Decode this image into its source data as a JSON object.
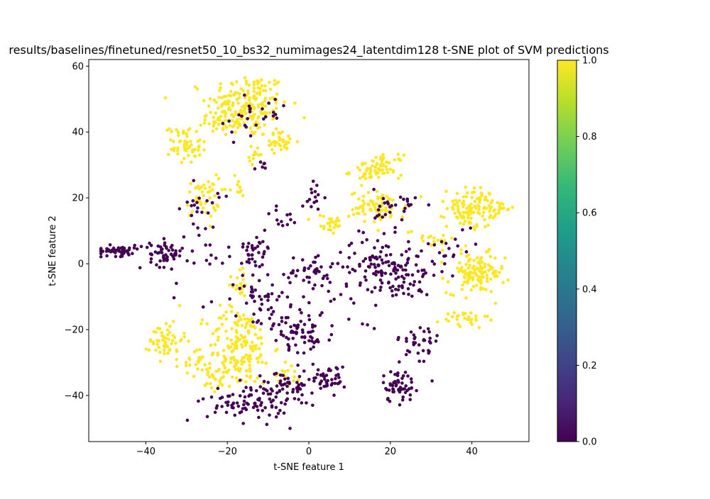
{
  "chart_data": {
    "type": "scatter",
    "title": "results/baselines/finetuned/resnet50_10_bs32_numimages24_latentdim128 t-SNE plot of SVM predictions",
    "xlabel": "t-SNE feature 1",
    "ylabel": "t-SNE feature 2",
    "xlim": [
      -54,
      54
    ],
    "ylim": [
      -54,
      62
    ],
    "x_ticks": [
      -40,
      -20,
      0,
      20,
      40
    ],
    "x_tick_labels": [
      "−40",
      "−20",
      "0",
      "20",
      "40"
    ],
    "y_ticks": [
      -40,
      -20,
      0,
      20,
      40,
      60
    ],
    "y_tick_labels": [
      "−40",
      "−20",
      "0",
      "20",
      "40",
      "60"
    ],
    "grid": false,
    "colormap": "viridis",
    "colorbar": {
      "range": [
        0.0,
        1.0
      ],
      "ticks": [
        0.0,
        0.2,
        0.4,
        0.6,
        0.8,
        1.0
      ],
      "tick_labels": [
        "0.0",
        "0.2",
        "0.4",
        "0.6",
        "0.8",
        "1.0"
      ],
      "colors": [
        "#440154",
        "#482878",
        "#3e4989",
        "#31688e",
        "#26828e",
        "#1f9e89",
        "#35b779",
        "#6ece58",
        "#b5de2b",
        "#fde725"
      ]
    },
    "classes": [
      {
        "value": 0,
        "color": "#440154"
      },
      {
        "value": 1,
        "color": "#fde725"
      }
    ],
    "clusters": [
      {
        "class": 1,
        "center": [
          -15,
          48
        ],
        "spread": [
          5,
          5
        ],
        "count": 190
      },
      {
        "class": 1,
        "center": [
          -21,
          44
        ],
        "spread": [
          3,
          3
        ],
        "count": 45
      },
      {
        "class": 1,
        "center": [
          -30,
          35
        ],
        "spread": [
          1.8,
          2.2
        ],
        "count": 45
      },
      {
        "class": 1,
        "center": [
          -31,
          40.5
        ],
        "spread": [
          1.5,
          1
        ],
        "count": 12
      },
      {
        "class": 1,
        "center": [
          -7,
          37
        ],
        "spread": [
          2,
          1.5
        ],
        "count": 35
      },
      {
        "class": 1,
        "center": [
          -13,
          33
        ],
        "spread": [
          0.8,
          1.5
        ],
        "count": 12
      },
      {
        "class": 1,
        "center": [
          -26,
          20
        ],
        "spread": [
          2,
          3
        ],
        "count": 45
      },
      {
        "class": 1,
        "center": [
          -18,
          23
        ],
        "spread": [
          1.5,
          1.5
        ],
        "count": 10
      },
      {
        "class": 1,
        "center": [
          15,
          28
        ],
        "spread": [
          2.5,
          1.8
        ],
        "count": 40
      },
      {
        "class": 1,
        "center": [
          19,
          30
        ],
        "spread": [
          2,
          1.5
        ],
        "count": 35
      },
      {
        "class": 1,
        "center": [
          17,
          17
        ],
        "spread": [
          3.5,
          2.5
        ],
        "count": 75
      },
      {
        "class": 1,
        "center": [
          40,
          17
        ],
        "spread": [
          3,
          3
        ],
        "count": 110
      },
      {
        "class": 1,
        "center": [
          47,
          17
        ],
        "spread": [
          1.2,
          1
        ],
        "count": 15
      },
      {
        "class": 1,
        "center": [
          41,
          -3
        ],
        "spread": [
          3.5,
          3
        ],
        "count": 120
      },
      {
        "class": 1,
        "center": [
          38,
          -17
        ],
        "spread": [
          3,
          1.5
        ],
        "count": 30
      },
      {
        "class": 1,
        "center": [
          5,
          12
        ],
        "spread": [
          2,
          1.5
        ],
        "count": 25
      },
      {
        "class": 1,
        "center": [
          30,
          8
        ],
        "spread": [
          3,
          1.5
        ],
        "count": 18
      },
      {
        "class": 1,
        "center": [
          -35,
          -23
        ],
        "spread": [
          2,
          3
        ],
        "count": 55
      },
      {
        "class": 1,
        "center": [
          -17,
          -25
        ],
        "spread": [
          4,
          6
        ],
        "count": 170
      },
      {
        "class": 1,
        "center": [
          -27,
          -31
        ],
        "spread": [
          2,
          1.5
        ],
        "count": 22
      },
      {
        "class": 1,
        "center": [
          -22,
          -35
        ],
        "spread": [
          2,
          2
        ],
        "count": 25
      },
      {
        "class": 1,
        "center": [
          -17,
          -5
        ],
        "spread": [
          1.5,
          3
        ],
        "count": 18
      },
      {
        "class": 1,
        "center": [
          -5,
          -33
        ],
        "spread": [
          1.5,
          2
        ],
        "count": 15
      },
      {
        "class": 0,
        "center": [
          -47,
          4
        ],
        "spread": [
          3,
          0.8
        ],
        "count": 60
      },
      {
        "class": 0,
        "center": [
          -35,
          3
        ],
        "spread": [
          2,
          2
        ],
        "count": 55
      },
      {
        "class": 0,
        "center": [
          -13,
          5
        ],
        "spread": [
          2,
          2
        ],
        "count": 30
      },
      {
        "class": 0,
        "center": [
          -12,
          -10
        ],
        "spread": [
          3,
          5
        ],
        "count": 45
      },
      {
        "class": 0,
        "center": [
          -5,
          -20
        ],
        "spread": [
          3,
          3
        ],
        "count": 40
      },
      {
        "class": 0,
        "center": [
          0,
          -3
        ],
        "spread": [
          3,
          3
        ],
        "count": 40
      },
      {
        "class": 0,
        "center": [
          0,
          -20
        ],
        "spread": [
          2,
          4
        ],
        "count": 30
      },
      {
        "class": 0,
        "center": [
          -15,
          -42
        ],
        "spread": [
          5,
          3
        ],
        "count": 80
      },
      {
        "class": 0,
        "center": [
          -5,
          -38
        ],
        "spread": [
          4,
          3
        ],
        "count": 60
      },
      {
        "class": 0,
        "center": [
          5,
          -35
        ],
        "spread": [
          2,
          2
        ],
        "count": 40
      },
      {
        "class": 0,
        "center": [
          18,
          0
        ],
        "spread": [
          5,
          4
        ],
        "count": 100
      },
      {
        "class": 0,
        "center": [
          22,
          -5
        ],
        "spread": [
          4,
          3
        ],
        "count": 40
      },
      {
        "class": 0,
        "center": [
          22,
          -37
        ],
        "spread": [
          2,
          2.5
        ],
        "count": 55
      },
      {
        "class": 0,
        "center": [
          27,
          -25
        ],
        "spread": [
          2.5,
          4
        ],
        "count": 35
      },
      {
        "class": 0,
        "center": [
          22,
          17
        ],
        "spread": [
          3,
          3
        ],
        "count": 30
      },
      {
        "class": 0,
        "center": [
          -16,
          44
        ],
        "spread": [
          3,
          4
        ],
        "count": 18
      },
      {
        "class": 0,
        "center": [
          -26,
          17
        ],
        "spread": [
          2,
          3
        ],
        "count": 20
      },
      {
        "class": 0,
        "center": [
          -8,
          47
        ],
        "spread": [
          2,
          3
        ],
        "count": 8
      },
      {
        "class": 0,
        "center": [
          -12,
          30
        ],
        "spread": [
          0.8,
          0.8
        ],
        "count": 6
      },
      {
        "class": 0,
        "center": [
          2,
          20
        ],
        "spread": [
          1.5,
          3
        ],
        "count": 15
      },
      {
        "class": 0,
        "center": [
          -7,
          14
        ],
        "spread": [
          1.5,
          2
        ],
        "count": 12
      },
      {
        "class": 0,
        "center": [
          35,
          5
        ],
        "spread": [
          3,
          3
        ],
        "count": 20
      },
      {
        "class": 0,
        "center": [
          8,
          -10
        ],
        "spread": [
          6,
          8
        ],
        "count": 25
      },
      {
        "class": 0,
        "center": [
          -24,
          2
        ],
        "spread": [
          6,
          8
        ],
        "count": 25
      }
    ]
  }
}
